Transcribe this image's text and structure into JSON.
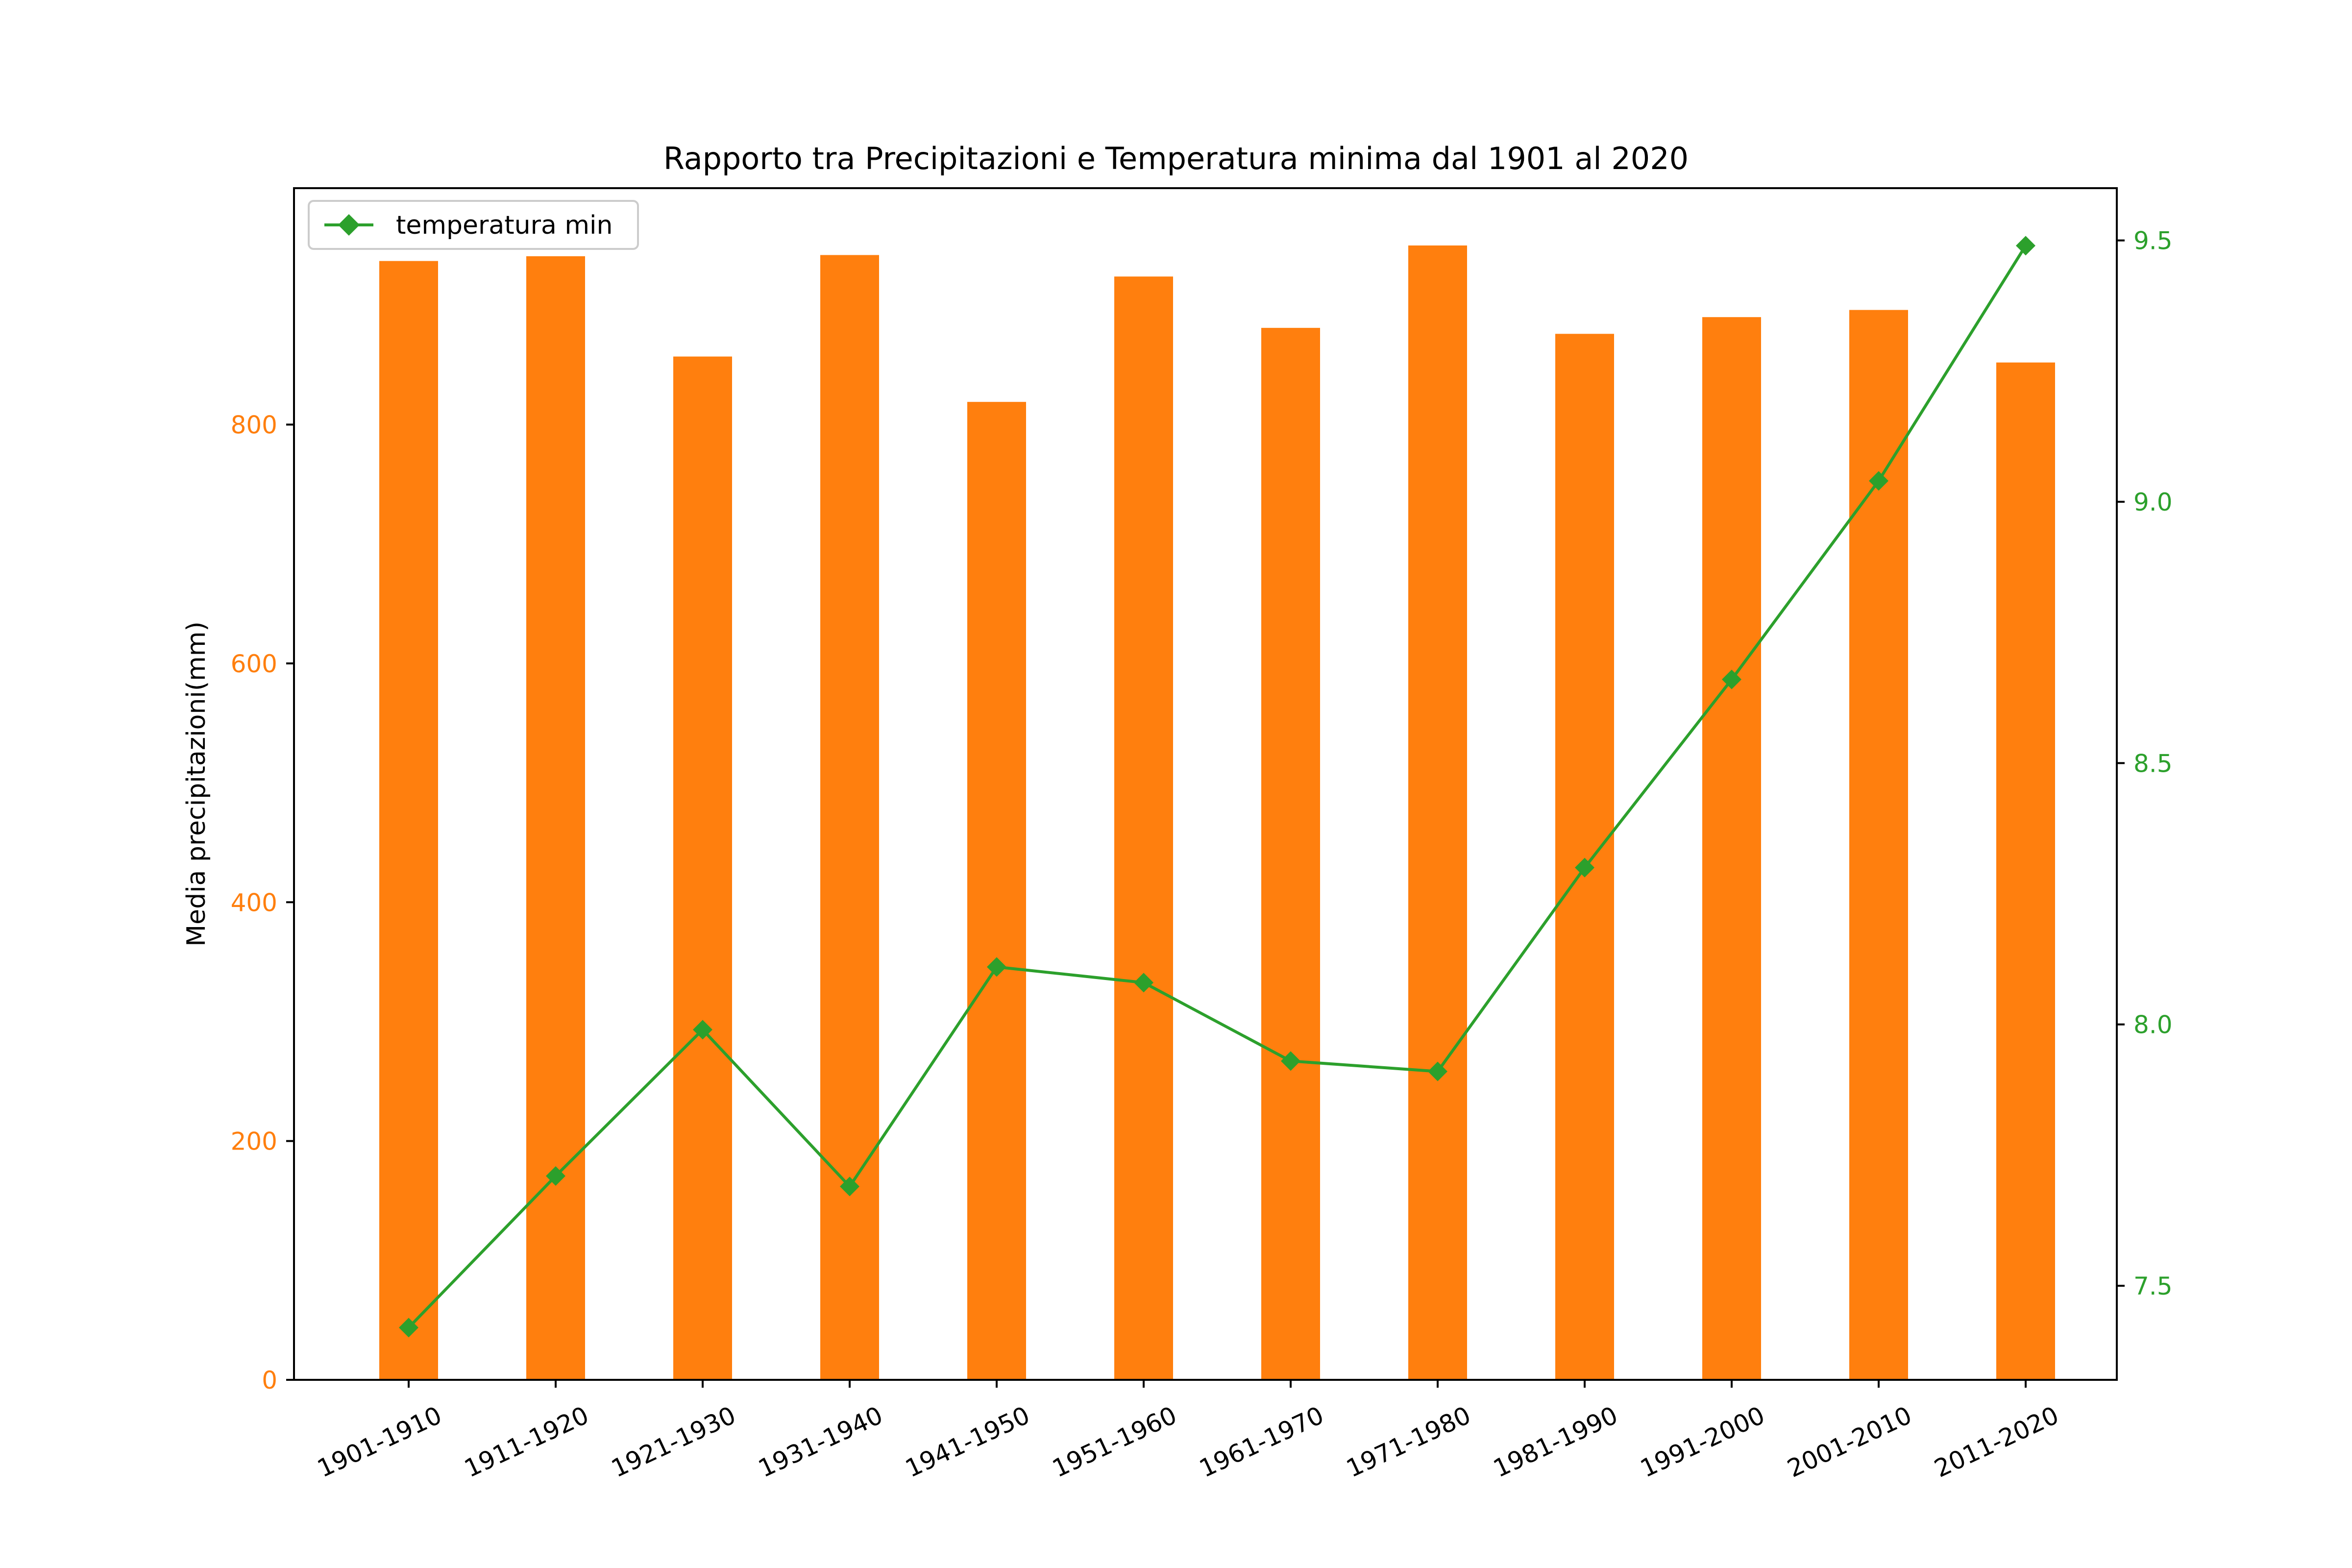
{
  "chart_data": {
    "type": "bar",
    "title": "Rapporto tra Precipitazioni e Temperatura minima dal 1901 al 2020",
    "ylabel": "Media precipitazioni(mm)",
    "y2label": "",
    "xlabel": "",
    "categories": [
      "1901-1910",
      "1911-1920",
      "1921-1930",
      "1931-1940",
      "1941-1950",
      "1951-1960",
      "1961-1970",
      "1971-1980",
      "1981-1990",
      "1991-2000",
      "2001-2010",
      "2011-2020"
    ],
    "bar_series": {
      "name": "",
      "color": "#ff7f0e",
      "axis": "left",
      "values": [
        937,
        941,
        857,
        942,
        819,
        924,
        881,
        950,
        876,
        890,
        896,
        852
      ]
    },
    "line_series": {
      "name": "temperatura min",
      "color": "#2ca02c",
      "axis": "right",
      "marker": "diamond",
      "values": [
        7.42,
        7.71,
        7.99,
        7.69,
        8.11,
        8.08,
        7.93,
        7.91,
        8.3,
        8.66,
        9.04,
        9.49
      ]
    },
    "y_left": {
      "range": [
        0,
        998
      ],
      "ticks": [
        0,
        200,
        400,
        600,
        800
      ],
      "tick_color": "#ff7f0e"
    },
    "y_right": {
      "range": [
        7.32,
        9.6
      ],
      "ticks": [
        7.5,
        8.0,
        8.5,
        9.0,
        9.5
      ],
      "tick_labels": [
        "7.5",
        "8.0",
        "8.5",
        "9.0",
        "9.5"
      ],
      "tick_color": "#2ca02c"
    },
    "x_tick_rotation": 25,
    "grid": false,
    "legend": {
      "position": "top-left",
      "entries": [
        "temperatura min"
      ]
    }
  }
}
